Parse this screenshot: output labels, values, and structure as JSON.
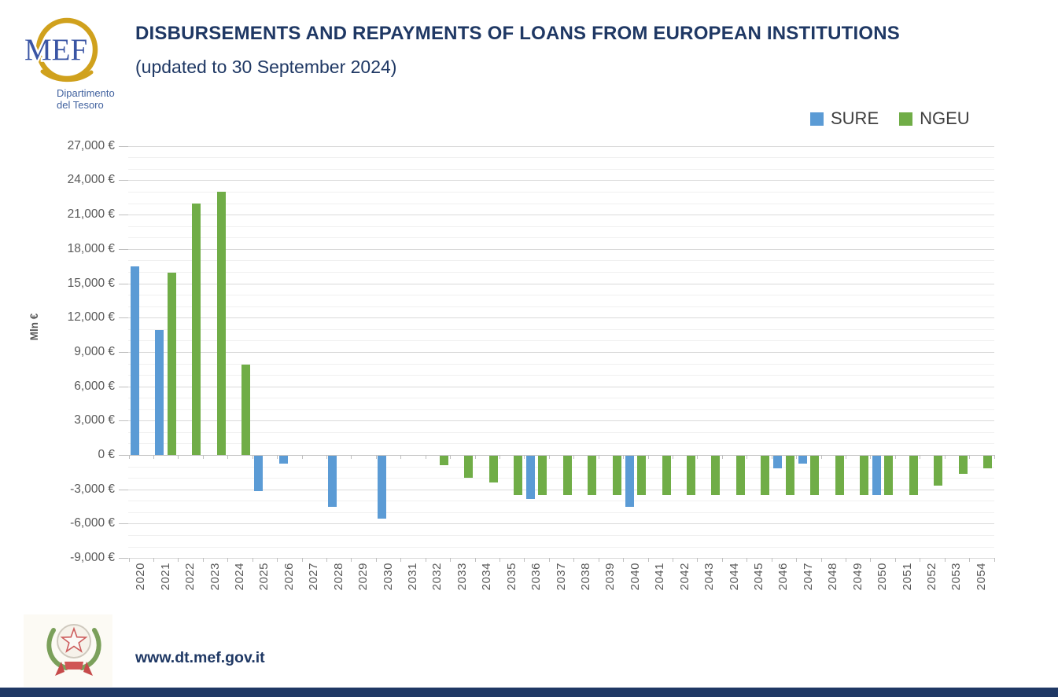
{
  "header": {
    "logo": {
      "acronym": "MEF",
      "department_line1": "Dipartimento",
      "department_line2": "del Tesoro"
    },
    "title": "DISBURSEMENTS AND REPAYMENTS OF LOANS FROM EUROPEAN INSTITUTIONS",
    "subtitle": "(updated to 30 September 2024)"
  },
  "footer": {
    "url": "www.dt.mef.gov.it"
  },
  "colors": {
    "sure_blue": "#5B9BD5",
    "ngeu_green": "#70AD47",
    "title_navy": "#1F3864",
    "axis_gray": "#595959"
  },
  "chart_data": {
    "type": "bar",
    "title": "DISBURSEMENTS AND REPAYMENTS OF LOANS FROM EUROPEAN INSTITUTIONS (updated to 30 September 2024)",
    "xlabel": "",
    "ylabel": "Mln €",
    "ylim": [
      -9000,
      27000
    ],
    "ytick_major_step": 3000,
    "ytick_minor_step": 1000,
    "ytick_labels": [
      "27,000 €",
      "24,000 €",
      "21,000 €",
      "18,000 €",
      "15,000 €",
      "12,000 €",
      "9,000 €",
      "6,000 €",
      "3,000 €",
      "0 €",
      "-3,000 €",
      "-6,000 €",
      "-9,000 €"
    ],
    "grid": true,
    "legend_position": "top-right",
    "categories": [
      "2020",
      "2021",
      "2022",
      "2023",
      "2024",
      "2025",
      "2026",
      "2027",
      "2028",
      "2029",
      "2030",
      "2031",
      "2032",
      "2033",
      "2034",
      "2035",
      "2036",
      "2037",
      "2038",
      "2039",
      "2040",
      "2041",
      "2042",
      "2043",
      "2044",
      "2045",
      "2046",
      "2047",
      "2048",
      "2049",
      "2050",
      "2051",
      "2052",
      "2053",
      "2054"
    ],
    "series": [
      {
        "name": "SURE",
        "color": "#5B9BD5",
        "values": [
          16500,
          10900,
          null,
          null,
          null,
          -3100,
          -650,
          null,
          -4450,
          null,
          -5500,
          null,
          null,
          null,
          null,
          null,
          -3800,
          null,
          null,
          null,
          -4450,
          null,
          null,
          null,
          null,
          null,
          -1100,
          -700,
          null,
          null,
          -3400,
          null,
          null,
          null,
          null
        ]
      },
      {
        "name": "NGEU",
        "color": "#70AD47",
        "values": [
          null,
          15900,
          22000,
          23000,
          7900,
          null,
          null,
          null,
          null,
          null,
          null,
          null,
          -800,
          -1900,
          -2300,
          -3400,
          -3400,
          -3400,
          -3400,
          -3400,
          -3400,
          -3400,
          -3400,
          -3400,
          -3400,
          -3400,
          -3400,
          -3400,
          -3400,
          -3400,
          -3400,
          -3400,
          -2600,
          -1600,
          -1100
        ]
      }
    ]
  }
}
